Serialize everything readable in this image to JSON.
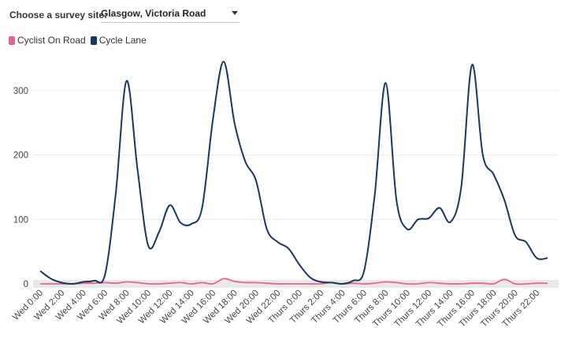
{
  "controls": {
    "site_label": "Choose a survey site:",
    "site_value": "Glasgow, Victoria Road"
  },
  "chart_data": {
    "type": "line",
    "x": [
      "Wed 0:00",
      "Wed 1:00",
      "Wed 2:00",
      "Wed 3:00",
      "Wed 4:00",
      "Wed 5:00",
      "Wed 6:00",
      "Wed 7:00",
      "Wed 8:00",
      "Wed 9:00",
      "Wed 10:00",
      "Wed 11:00",
      "Wed 12:00",
      "Wed 13:00",
      "Wed 14:00",
      "Wed 15:00",
      "Wed 16:00",
      "Wed 17:00",
      "Wed 18:00",
      "Wed 19:00",
      "Wed 20:00",
      "Wed 21:00",
      "Wed 22:00",
      "Wed 23:00",
      "Thurs 0:00",
      "Thurs 1:00",
      "Thurs 2:00",
      "Thurs 3:00",
      "Thurs 4:00",
      "Thurs 5:00",
      "Thurs 6:00",
      "Thurs 7:00",
      "Thurs 8:00",
      "Thurs 9:00",
      "Thurs 10:00",
      "Thurs 11:00",
      "Thurs 12:00",
      "Thurs 13:00",
      "Thurs 14:00",
      "Thurs 15:00",
      "Thurs 16:00",
      "Thurs 17:00",
      "Thurs 18:00",
      "Thurs 19:00",
      "Thurs 20:00",
      "Thurs 21:00",
      "Thurs 22:00",
      "Thurs 23:00"
    ],
    "xtick_labels": [
      "Wed 0:00",
      "Wed 2:00",
      "Wed 4:00",
      "Wed 6:00",
      "Wed 8:00",
      "Wed 10:00",
      "Wed 12:00",
      "Wed 14:00",
      "Wed 16:00",
      "Wed 18:00",
      "Wed 20:00",
      "Wed 22:00",
      "Thurs 0:00",
      "Thurs 2:00",
      "Thurs 4:00",
      "Thurs 6:00",
      "Thurs 8:00",
      "Thurs 10:00",
      "Thurs 12:00",
      "Thurs 14:00",
      "Thurs 16:00",
      "Thurs 18:00",
      "Thurs 20:00",
      "Thurs 22:00"
    ],
    "series": [
      {
        "name": "Cyclist On Road",
        "color": "#e8648c",
        "values": [
          0,
          0,
          0,
          0,
          1,
          1,
          2,
          1,
          3,
          2,
          0,
          0,
          1,
          2,
          0,
          2,
          0,
          8,
          4,
          2,
          2,
          1,
          0,
          0,
          0,
          0,
          0,
          2,
          0,
          1,
          0,
          1,
          3,
          2,
          0,
          0,
          2,
          1,
          0,
          0,
          1,
          1,
          0,
          7,
          0,
          0,
          1,
          1
        ]
      },
      {
        "name": "Cycle Lane",
        "color": "#17375e",
        "values": [
          20,
          8,
          2,
          0,
          3,
          5,
          14,
          140,
          315,
          180,
          60,
          80,
          122,
          95,
          93,
          118,
          255,
          345,
          250,
          190,
          160,
          85,
          65,
          55,
          30,
          10,
          3,
          2,
          0,
          5,
          20,
          140,
          312,
          130,
          85,
          100,
          102,
          118,
          96,
          150,
          340,
          200,
          170,
          130,
          75,
          65,
          40,
          40
        ]
      }
    ],
    "yticks": [
      0,
      100,
      200,
      300
    ],
    "ylim": [
      0,
      360
    ],
    "grid": true,
    "legend_position": "top-left",
    "title": "",
    "xlabel": "",
    "ylabel": ""
  }
}
